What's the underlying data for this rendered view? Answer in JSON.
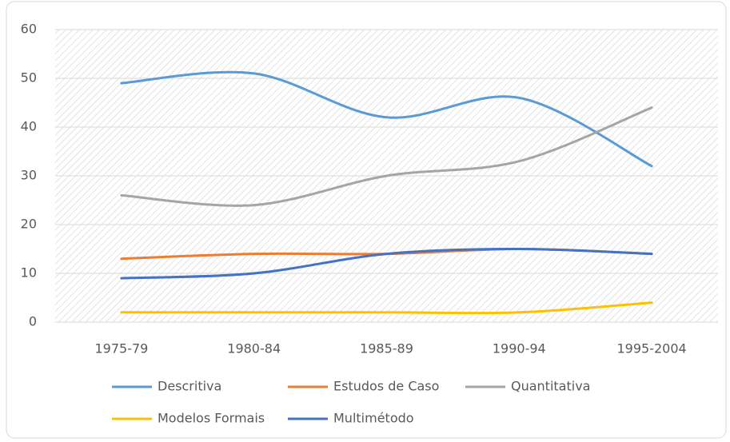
{
  "chart_data": {
    "type": "line",
    "categories": [
      "1975-79",
      "1980-84",
      "1985-89",
      "1990-94",
      "1995-2004"
    ],
    "series": [
      {
        "name": "Descritiva",
        "color": "#5b9bd5",
        "values": [
          49,
          51,
          42,
          46,
          32
        ]
      },
      {
        "name": "Estudos de Caso",
        "color": "#ed7d31",
        "values": [
          13,
          14,
          14,
          15,
          14
        ]
      },
      {
        "name": "Quantitativa",
        "color": "#a5a5a5",
        "values": [
          26,
          24,
          30,
          33,
          44
        ]
      },
      {
        "name": "Modelos Formais",
        "color": "#ffc000",
        "values": [
          2,
          2,
          2,
          2,
          4
        ]
      },
      {
        "name": "Multimétodo",
        "color": "#4472c4",
        "values": [
          9,
          10,
          14,
          15,
          14
        ]
      }
    ],
    "ylim": [
      0,
      60
    ],
    "yticks": [
      0,
      10,
      20,
      30,
      40,
      50,
      60
    ],
    "grid": true,
    "smooth": true,
    "legend": "bottom"
  }
}
